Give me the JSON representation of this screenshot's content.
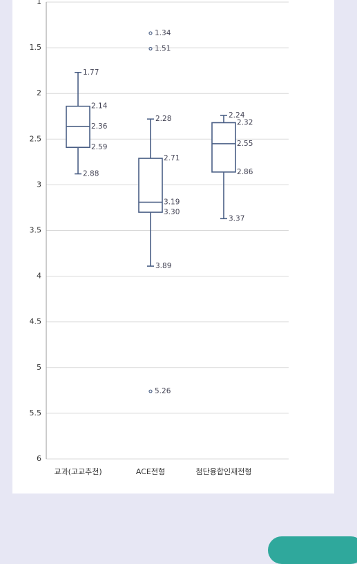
{
  "chart_data": {
    "type": "boxplot",
    "orientation": "vertical",
    "y_axis_inverted": true,
    "ylim": [
      1,
      6
    ],
    "yticks": [
      "1",
      "1.5",
      "2",
      "2.5",
      "3",
      "3.5",
      "4",
      "4.5",
      "5",
      "5.5",
      "6"
    ],
    "grid": true,
    "categories": [
      "교과(고교추천)",
      "ACE전형",
      "첨단융합인재전형"
    ],
    "series": [
      {
        "category": "교과(고교추천)",
        "min": 1.77,
        "q1": 2.14,
        "median": 2.36,
        "q3": 2.59,
        "max": 2.88,
        "outliers": [],
        "labels": {
          "min": "1.77",
          "q1": "2.14",
          "median": "2.36",
          "q3": "2.59",
          "max": "2.88"
        },
        "outlier_labels": []
      },
      {
        "category": "ACE전형",
        "min": 2.28,
        "q1": 2.71,
        "median": 3.19,
        "q3": 3.3,
        "max": 3.89,
        "outliers": [
          1.34,
          1.51,
          5.26
        ],
        "labels": {
          "min": "2.28",
          "q1": "2.71",
          "median": "3.19",
          "q3": "3.30",
          "max": "3.89"
        },
        "outlier_labels": [
          "1.34",
          "1.51",
          "5.26"
        ]
      },
      {
        "category": "첨단융합인재전형",
        "min": 2.24,
        "q1": 2.32,
        "median": 2.55,
        "q3": 2.86,
        "max": 3.37,
        "outliers": [],
        "labels": {
          "min": "2.24",
          "q1": "2.32",
          "median": "2.55",
          "q3": "2.86",
          "max": "3.37"
        },
        "outlier_labels": []
      }
    ],
    "colors": {
      "box": "#4a5f85",
      "grid": "#d9d9d9",
      "accent_button": "#2fa89c"
    }
  }
}
